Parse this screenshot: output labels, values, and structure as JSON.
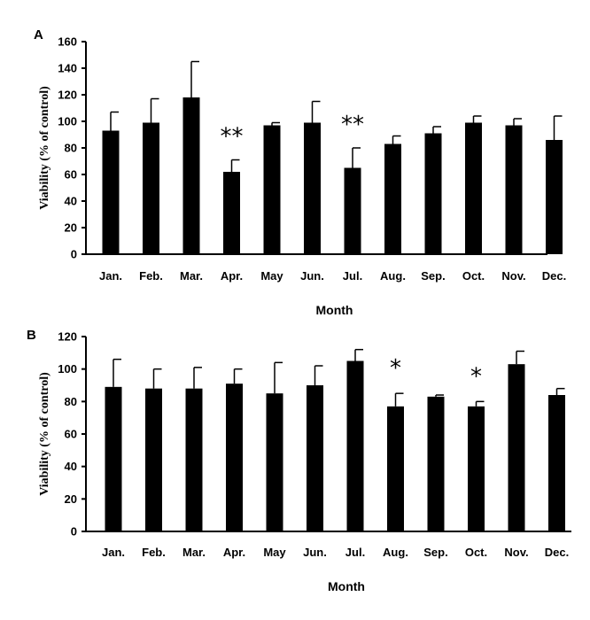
{
  "chart_data": [
    {
      "type": "bar",
      "panel": "A",
      "categories": [
        "Jan.",
        "Feb.",
        "Mar.",
        "Apr.",
        "May",
        "Jun.",
        "Jul.",
        "Aug.",
        "Sep.",
        "Oct.",
        "Nov.",
        "Dec."
      ],
      "values": [
        93,
        99,
        118,
        62,
        97,
        99,
        65,
        83,
        91,
        99,
        97,
        86
      ],
      "errors": [
        14,
        18,
        27,
        9,
        2,
        16,
        15,
        6,
        5,
        5,
        5,
        18
      ],
      "annotations": [
        {
          "category": "Apr.",
          "label": "**"
        },
        {
          "category": "Jul.",
          "label": "**"
        }
      ],
      "xlabel": "Month",
      "ylabel": "Viability (% of control)",
      "ylim": [
        0,
        160
      ],
      "yticks": [
        0,
        20,
        40,
        60,
        80,
        100,
        120,
        140,
        160
      ],
      "grid": false,
      "color": "#000000"
    },
    {
      "type": "bar",
      "panel": "B",
      "categories": [
        "Jan.",
        "Feb.",
        "Mar.",
        "Apr.",
        "May",
        "Jun.",
        "Jul.",
        "Aug.",
        "Sep.",
        "Oct.",
        "Nov.",
        "Dec."
      ],
      "values": [
        89,
        88,
        88,
        91,
        85,
        90,
        105,
        77,
        83,
        77,
        103,
        84
      ],
      "errors": [
        17,
        12,
        13,
        9,
        19,
        12,
        7,
        8,
        1,
        3,
        8,
        4
      ],
      "annotations": [
        {
          "category": "Aug.",
          "label": "*"
        },
        {
          "category": "Oct.",
          "label": "*"
        }
      ],
      "xlabel": "Month",
      "ylabel": "Viability (% of control)",
      "ylim": [
        0,
        120
      ],
      "yticks": [
        0,
        20,
        40,
        60,
        80,
        100,
        120
      ],
      "grid": false,
      "color": "#000000"
    }
  ]
}
